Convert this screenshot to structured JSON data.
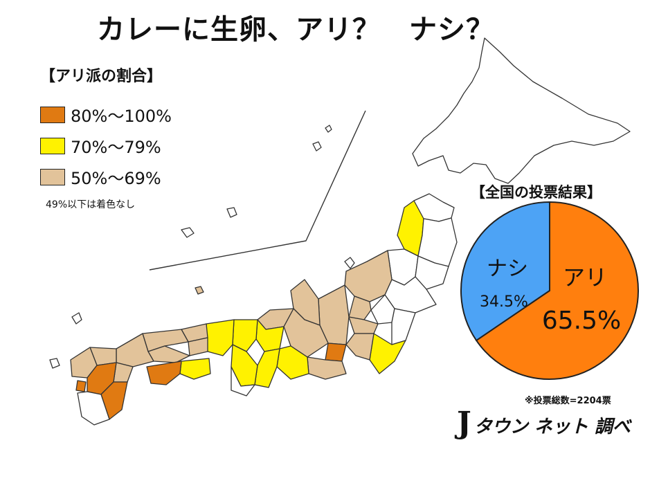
{
  "title": "カレーに生卵、アリ？　ナシ？",
  "legend": {
    "title": "【アリ派の割合】",
    "items": [
      {
        "label": "80%〜100%",
        "color": "#E07A12"
      },
      {
        "label": "70%〜79%",
        "color": "#FFF200"
      },
      {
        "label": "50%〜69%",
        "color": "#E2C39A"
      }
    ],
    "note": "49%以下は着色なし"
  },
  "pie_title": "【全国の投票結果】",
  "chart_data": {
    "type": "pie",
    "title": "【全国の投票結果】",
    "slices": [
      {
        "label": "アリ",
        "value": 65.5,
        "value_label": "65.5%",
        "color": "#FF7F0E"
      },
      {
        "label": "ナシ",
        "value": 34.5,
        "value_label": "34.5%",
        "color": "#4DA3F5"
      }
    ]
  },
  "total_votes": "※投票総数=2204票",
  "credit": {
    "logo": "J",
    "text": "タウン ネット 調べ"
  }
}
